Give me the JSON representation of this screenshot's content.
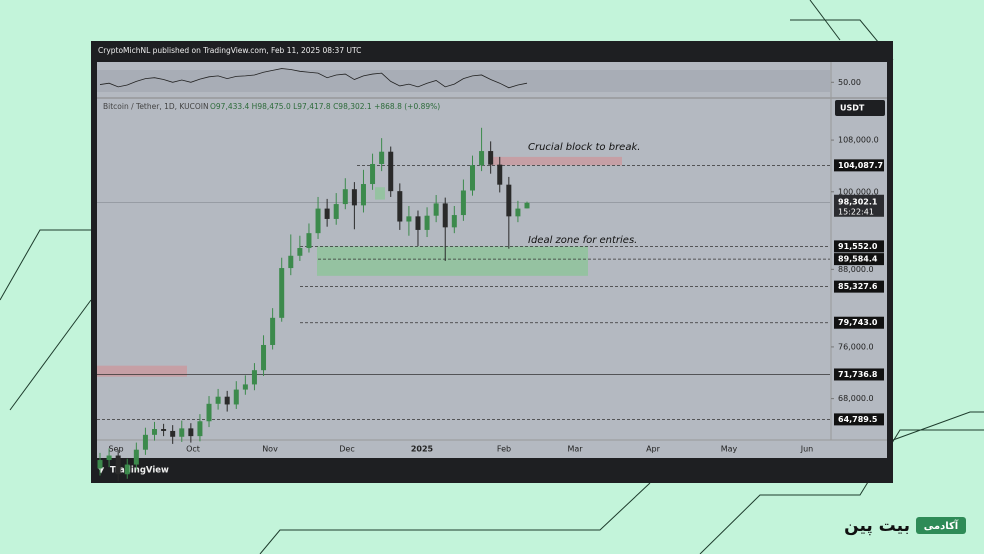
{
  "header": "CryptoMichNL published on TradingView.com, Feb 11, 2025 08:37 UTC",
  "chart_data": {
    "type": "candlestick",
    "symbol": "Bitcoin / Tether, 1D, KUCOIN",
    "ohlc_legend": "O97,433.4 H98,475.0 L97,417.8 C98,302.1 +868.8 (+0.89%)",
    "currency": "USDT",
    "categories": [
      null,
      null,
      null,
      null,
      null,
      null,
      null,
      null,
      null,
      null,
      null,
      null,
      null,
      null,
      null,
      null,
      null,
      null,
      null,
      null,
      null,
      null,
      null,
      null,
      null,
      null,
      null,
      null,
      null,
      null,
      null,
      null,
      null,
      null,
      null,
      null,
      null,
      null,
      null,
      null,
      null,
      null,
      null,
      null,
      null,
      null,
      null,
      null
    ],
    "open": [
      57200,
      58500,
      59200,
      56300,
      57800,
      60100,
      62400,
      63300,
      63000,
      62100,
      63400,
      62200,
      64500,
      67200,
      68300,
      67100,
      69400,
      70200,
      72400,
      76300,
      80500,
      88200,
      90100,
      91300,
      93600,
      97400,
      95800,
      98100,
      100400,
      97900,
      101200,
      104300,
      106200,
      100100,
      95400,
      96200,
      94100,
      96300,
      98200,
      94500,
      96400,
      100200,
      104100,
      106300,
      104200,
      101100,
      96200,
      97433.4
    ],
    "high": [
      59600,
      60300,
      60100,
      58700,
      61200,
      63500,
      64400,
      64100,
      63900,
      64600,
      64200,
      65600,
      68400,
      69500,
      69200,
      70700,
      71600,
      73500,
      77800,
      82000,
      89800,
      93400,
      93200,
      95100,
      99200,
      98900,
      99800,
      102100,
      101500,
      103400,
      105900,
      108300,
      107000,
      101300,
      97800,
      97100,
      97600,
      99500,
      99100,
      97800,
      101900,
      105600,
      109900,
      107800,
      105400,
      102300,
      98600,
      98475
    ],
    "low": [
      56100,
      57400,
      55200,
      55600,
      56900,
      59300,
      61500,
      62200,
      61000,
      61300,
      61200,
      61400,
      63600,
      66300,
      66000,
      66400,
      68600,
      69300,
      71500,
      75600,
      79900,
      87100,
      89300,
      90600,
      92700,
      94600,
      94900,
      97300,
      94200,
      96800,
      100300,
      103200,
      99200,
      94100,
      93200,
      91600,
      93000,
      95300,
      89300,
      93600,
      95500,
      99400,
      103200,
      102800,
      99900,
      91200,
      95300,
      97417.8
    ],
    "close": [
      58500,
      59200,
      56300,
      57800,
      60100,
      62400,
      63300,
      63000,
      62100,
      63400,
      62200,
      64500,
      67200,
      68300,
      67100,
      69400,
      70200,
      72400,
      76300,
      80500,
      88200,
      90100,
      91300,
      93600,
      97400,
      95800,
      98100,
      100400,
      97900,
      101200,
      104300,
      106200,
      100100,
      95400,
      96200,
      94100,
      96300,
      98200,
      94500,
      96400,
      100200,
      104100,
      106300,
      104200,
      101100,
      96200,
      97400,
      98302.1
    ],
    "up_color": "#3c8a4c",
    "down_color": "#2a2a2a",
    "ylim": [
      61600,
      114200
    ],
    "yticks": [
      {
        "value": 108000,
        "label": "108,000.0"
      },
      {
        "value": 100000,
        "label": "100,000.0"
      },
      {
        "value": 88000,
        "label": "88,000.0"
      },
      {
        "value": 76000,
        "label": "76,000.0"
      },
      {
        "value": 68000,
        "label": "68,000.0"
      }
    ],
    "levels": [
      {
        "value": 104087.7,
        "label": "104,087.7",
        "style": "dashed"
      },
      {
        "value": 91552.0,
        "label": "91,552.0",
        "style": "dashed"
      },
      {
        "value": 89584.4,
        "label": "89,584.4",
        "style": "dashed"
      },
      {
        "value": 85327.6,
        "label": "85,327.6",
        "style": "dashed"
      },
      {
        "value": 79743.0,
        "label": "79,743.0",
        "style": "dashed"
      },
      {
        "value": 71736.8,
        "label": "71,736.8",
        "style": "solid"
      },
      {
        "value": 64789.5,
        "label": "64,789.5",
        "style": "dashed"
      }
    ],
    "last_price": {
      "value": 98302.1,
      "label": "98,302.1",
      "countdown": "15:22:41"
    },
    "zones": [
      {
        "range": [
          87000,
          91552
        ],
        "color": "#8fc39b"
      },
      {
        "range": [
          98800,
          100700
        ],
        "color": "#8fc39b"
      },
      {
        "range": [
          104087.7,
          105400
        ],
        "color": "#c99aa0"
      },
      {
        "range": [
          71400,
          73100
        ],
        "color": "#c99aa0"
      }
    ],
    "annotations": [
      "Crucial block to break.",
      "Ideal zone for entries."
    ],
    "time_labels": [
      "Sep",
      "Oct",
      "Nov",
      "Dec",
      "2025",
      "Feb",
      "Mar",
      "Apr",
      "May",
      "Jun"
    ],
    "indicator": {
      "values": [
        45,
        48,
        40,
        44,
        52,
        58,
        60,
        56,
        50,
        55,
        50,
        57,
        62,
        64,
        58,
        63,
        64,
        66,
        72,
        76,
        80,
        78,
        74,
        72,
        70,
        60,
        66,
        68,
        56,
        64,
        68,
        70,
        52,
        42,
        46,
        40,
        48,
        54,
        40,
        46,
        58,
        64,
        66,
        56,
        48,
        38,
        44,
        48
      ],
      "ylim": [
        20,
        90
      ],
      "yticks": [
        {
          "value": 50,
          "label": "50.00"
        }
      ],
      "color": "#222"
    }
  },
  "branding": {
    "footer": "TradingView",
    "logo_badge": "آکادمی",
    "logo_text": "بیت پین"
  }
}
